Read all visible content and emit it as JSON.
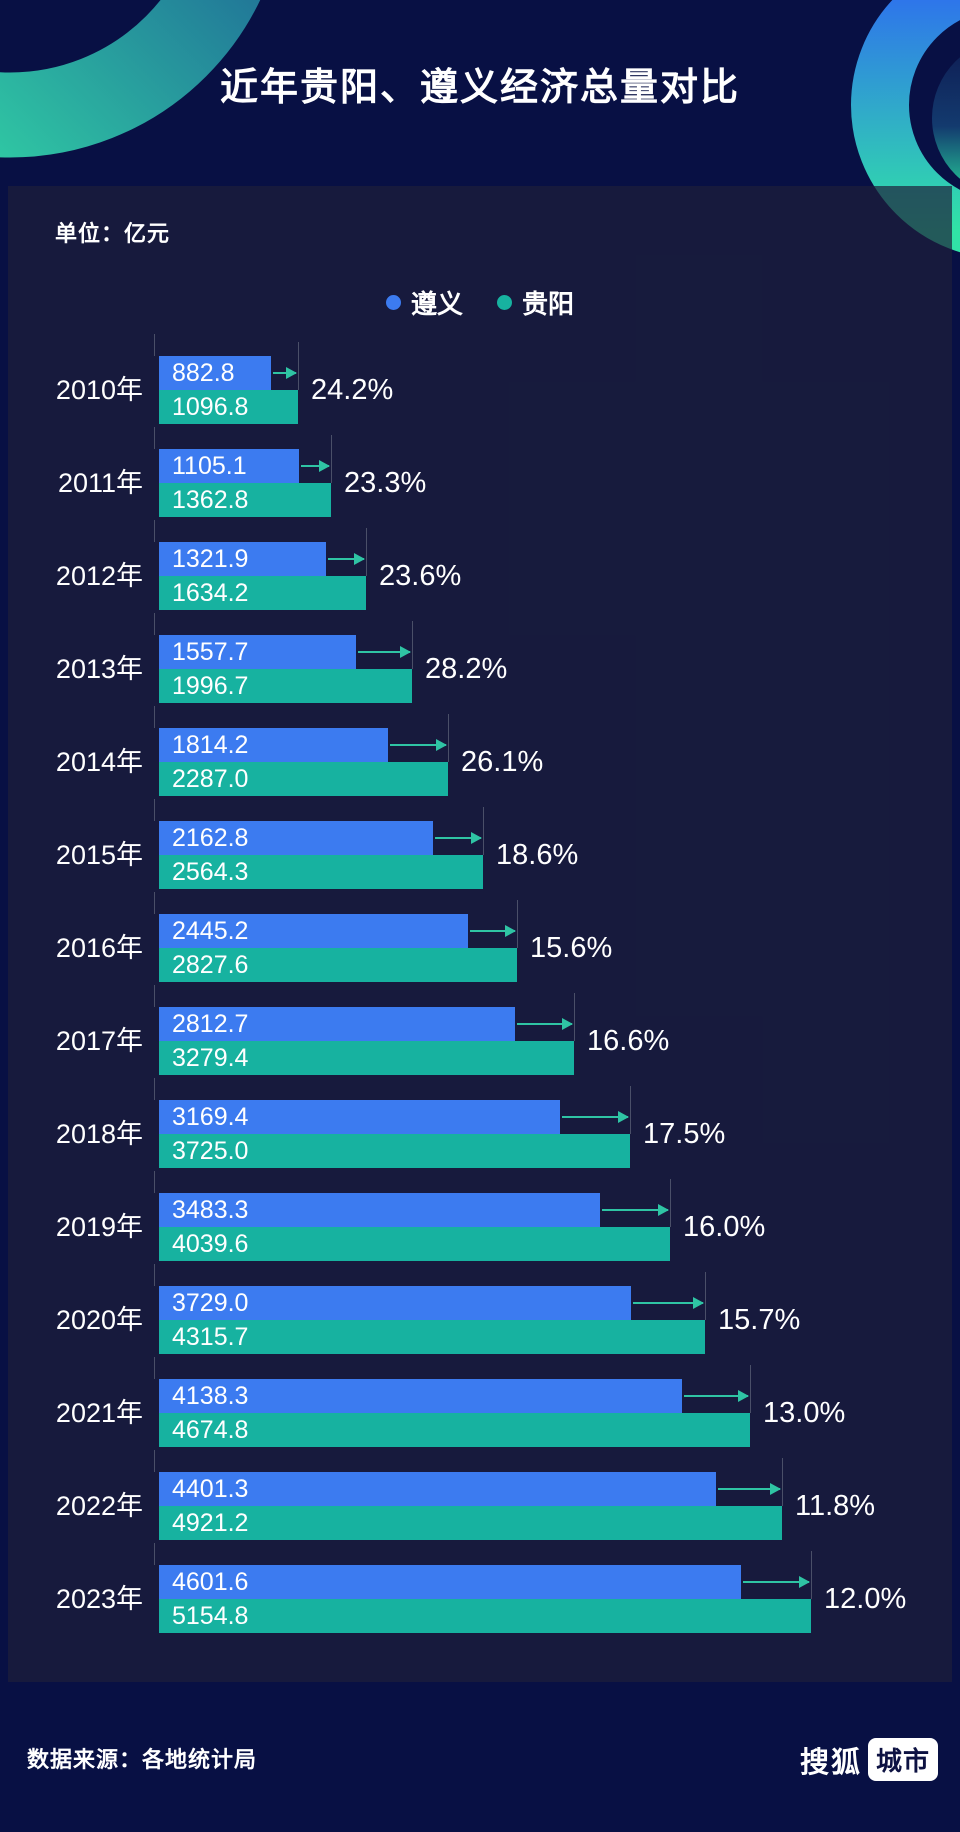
{
  "header": {
    "title": "近年贵阳、遵义经济总量对比",
    "unit_label": "单位：亿元"
  },
  "chart_data": {
    "type": "bar",
    "orientation": "horizontal",
    "title": "近年贵阳、遵义经济总量对比",
    "unit": "亿元",
    "legend_position": "top-center",
    "value_labels": "inside-left",
    "categories": [
      "2010年",
      "2011年",
      "2012年",
      "2013年",
      "2014年",
      "2015年",
      "2016年",
      "2017年",
      "2018年",
      "2019年",
      "2020年",
      "2021年",
      "2022年",
      "2023年"
    ],
    "series": [
      {
        "name": "遵义",
        "color": "#3c7bf0",
        "values": [
          882.8,
          1105.1,
          1321.9,
          1557.7,
          1814.2,
          2162.8,
          2445.2,
          2812.7,
          3169.4,
          3483.3,
          3729.0,
          4138.3,
          4401.3,
          4601.6
        ]
      },
      {
        "name": "贵阳",
        "color": "#17b2a0",
        "values": [
          1096.8,
          1362.8,
          1634.2,
          1996.7,
          2287.0,
          2564.3,
          2827.6,
          3279.4,
          3725.0,
          4039.6,
          4315.7,
          4674.8,
          4921.2,
          5154.8
        ]
      }
    ],
    "percent_labels": [
      "24.2%",
      "23.3%",
      "23.6%",
      "28.2%",
      "26.1%",
      "18.6%",
      "15.6%",
      "16.6%",
      "17.5%",
      "16.0%",
      "15.7%",
      "13.0%",
      "11.8%",
      "12.0%"
    ],
    "annotation_style": "arrow-from-zunyi-end-to-guiyang-end"
  },
  "footer": {
    "source": "数据来源：各地统计局",
    "logo_text": "搜狐",
    "logo_badge": "城市"
  },
  "colors": {
    "background": "#081044",
    "panel": "rgba(30,32,58,0.70)",
    "zunyi_blue": "#3c7bf0",
    "guiyang_teal": "#17b2a0",
    "arrow": "#2fc4a4",
    "tick": "#4a4f68"
  }
}
